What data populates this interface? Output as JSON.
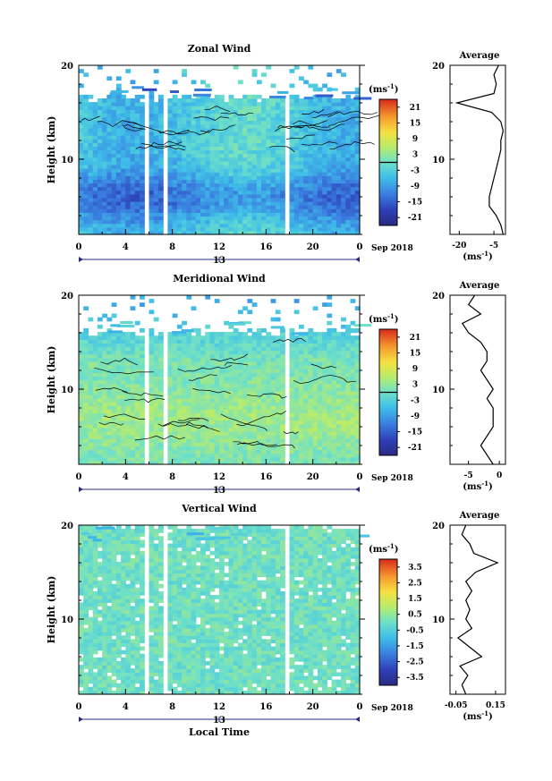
{
  "chart_data": [
    {
      "type": "heatmap",
      "title": "Zonal Wind",
      "ylabel": "Height (km)",
      "unit_label": "(ms",
      "unit_sup": "-1",
      "unit_close": ")",
      "x_ticks": [
        "0",
        "4",
        "8",
        "12",
        "16",
        "20",
        "0"
      ],
      "y_ticks": [
        "10",
        "20"
      ],
      "ylim": [
        2,
        20
      ],
      "xlim": [
        0,
        24
      ],
      "date_day": "13",
      "date_label": "Sep 2018",
      "colorbar_ticks": [
        "21",
        "15",
        "9",
        "3",
        "-3",
        "-9",
        "-15",
        "-21"
      ],
      "colorbar_range": [
        -24,
        24
      ],
      "contour_level": 0,
      "data_gaps_hours": [
        [
          5.6,
          5.8
        ],
        [
          7.4,
          7.7
        ],
        [
          11.5,
          11.7
        ],
        [
          17.8,
          18.0
        ]
      ],
      "profile": {
        "title": "Average",
        "xlabel_unit": "(ms",
        "xlabel_sup": "-1",
        "xlabel_close": ")",
        "x_ticks": [
          "-20",
          "-5"
        ],
        "y_ticks": [
          "10",
          "20"
        ],
        "xlim": [
          -24,
          0
        ],
        "heights_km": [
          2,
          3,
          4,
          5,
          6,
          7,
          8,
          9,
          10,
          11,
          12,
          13,
          14,
          15,
          16,
          17,
          18,
          19,
          20
        ],
        "values": [
          -1,
          -2,
          -4,
          -7,
          -7,
          -6,
          -5,
          -4,
          -3,
          -2,
          -2,
          -1,
          -2,
          -6,
          -21,
          -5,
          -4,
          -5,
          -3
        ]
      }
    },
    {
      "type": "heatmap",
      "title": "Meridional Wind",
      "ylabel": "Height (km)",
      "unit_label": "(ms",
      "unit_sup": "-1",
      "unit_close": ")",
      "x_ticks": [
        "0",
        "4",
        "8",
        "12",
        "16",
        "20",
        "0"
      ],
      "y_ticks": [
        "10",
        "20"
      ],
      "ylim": [
        2,
        20
      ],
      "xlim": [
        0,
        24
      ],
      "date_day": "13",
      "date_label": "Sep 2018",
      "colorbar_ticks": [
        "21",
        "15",
        "9",
        "3",
        "-3",
        "-9",
        "-15",
        "-21"
      ],
      "colorbar_range": [
        -24,
        24
      ],
      "contour_level": 0,
      "data_gaps_hours": [
        [
          5.6,
          5.8
        ],
        [
          7.4,
          7.7
        ],
        [
          11.5,
          11.7
        ],
        [
          17.8,
          18.0
        ]
      ],
      "profile": {
        "title": "Average",
        "xlabel_unit": "(ms",
        "xlabel_sup": "-1",
        "xlabel_close": ")",
        "x_ticks": [
          "-5",
          "0"
        ],
        "y_ticks": [
          "10",
          "20"
        ],
        "xlim": [
          -8,
          1
        ],
        "heights_km": [
          2,
          3,
          4,
          5,
          6,
          7,
          8,
          9,
          10,
          11,
          12,
          13,
          14,
          15,
          16,
          17,
          18,
          19,
          20
        ],
        "values": [
          -1,
          -2,
          -3,
          -2,
          -1,
          -1,
          -1,
          -2,
          -1,
          -2,
          -3,
          -2,
          -2,
          -3,
          -5,
          -6,
          -3,
          -5,
          -4
        ]
      }
    },
    {
      "type": "heatmap",
      "title": "Vertical Wind",
      "ylabel": "Height (km)",
      "xlabel": "Local Time",
      "unit_label": "(ms",
      "unit_sup": "-1",
      "unit_close": ")",
      "x_ticks": [
        "0",
        "4",
        "8",
        "12",
        "16",
        "20",
        "0"
      ],
      "y_ticks": [
        "10",
        "20"
      ],
      "ylim": [
        2,
        20
      ],
      "xlim": [
        0,
        24
      ],
      "date_day": "13",
      "date_label": "Sep 2018",
      "colorbar_ticks": [
        "3.5",
        "2.5",
        "1.5",
        "0.5",
        "-0.5",
        "-1.5",
        "-2.5",
        "-3.5"
      ],
      "colorbar_range": [
        -4,
        4
      ],
      "data_gaps_hours": [
        [
          5.6,
          5.8
        ],
        [
          7.4,
          7.7
        ],
        [
          11.5,
          11.7
        ],
        [
          17.8,
          18.0
        ]
      ],
      "profile": {
        "title": "Average",
        "xlabel_unit": "(ms",
        "xlabel_sup": "-1",
        "xlabel_close": ")",
        "x_ticks": [
          "-0.05",
          "0.15"
        ],
        "y_ticks": [
          "10",
          "20"
        ],
        "xlim": [
          -0.08,
          0.2
        ],
        "heights_km": [
          2,
          3,
          4,
          5,
          6,
          7,
          8,
          9,
          10,
          11,
          12,
          13,
          14,
          15,
          16,
          17,
          18,
          19,
          20
        ],
        "values": [
          0.0,
          -0.02,
          0.01,
          -0.03,
          0.08,
          0.02,
          -0.04,
          0.03,
          0.0,
          0.02,
          0.0,
          0.03,
          0.0,
          0.05,
          0.16,
          0.04,
          0.02,
          -0.02,
          0.0
        ]
      }
    }
  ]
}
